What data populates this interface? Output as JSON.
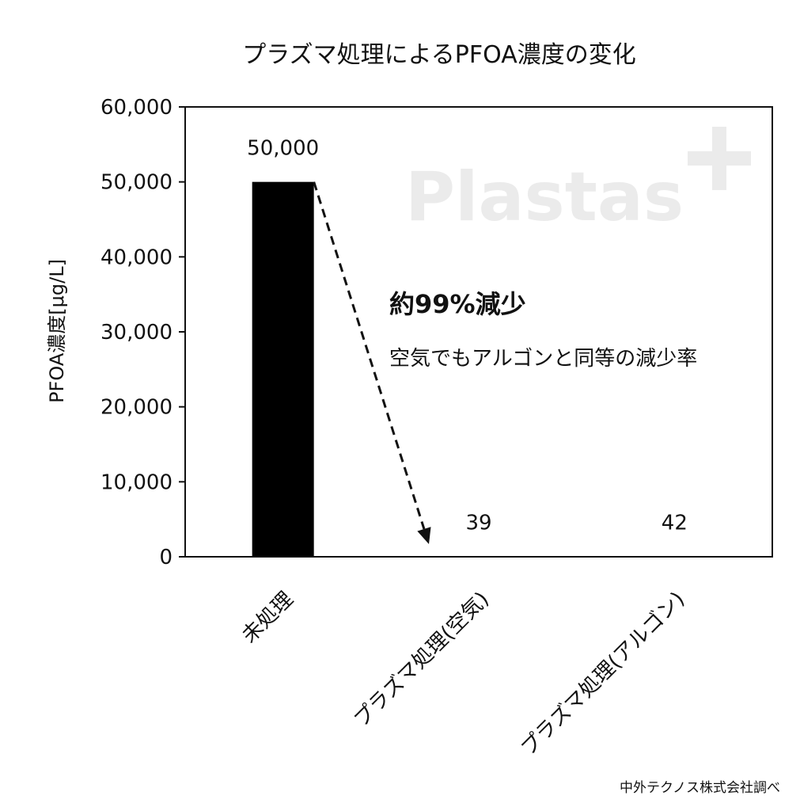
{
  "chart_data": {
    "type": "bar",
    "title": "プラズマ処理によるPFOA濃度の変化",
    "ylabel": "PFOA濃度[μg/L]",
    "xlabel": "",
    "categories": [
      "未処理",
      "プラズマ処理(空気)",
      "プラズマ処理(アルゴン)"
    ],
    "values": [
      50000,
      39,
      42
    ],
    "data_labels": [
      "50,000",
      "39",
      "42"
    ],
    "ylim": [
      0,
      60000
    ],
    "yticks": [
      0,
      10000,
      20000,
      30000,
      40000,
      50000,
      60000
    ],
    "ytick_labels": [
      "0",
      "10,000",
      "20,000",
      "30,000",
      "40,000",
      "50,000",
      "60,000"
    ],
    "bar_color": "#000000",
    "grid": false,
    "legend": "none",
    "annotation": {
      "main": "約99%減少",
      "sub": "空気でもアルゴンと同等の減少率",
      "arrow_style": "dashed",
      "arrow_from_value": 50000,
      "arrow_to_value": 0
    },
    "source": "中外テクノス株式会社調べ",
    "watermark": "Plastas"
  }
}
